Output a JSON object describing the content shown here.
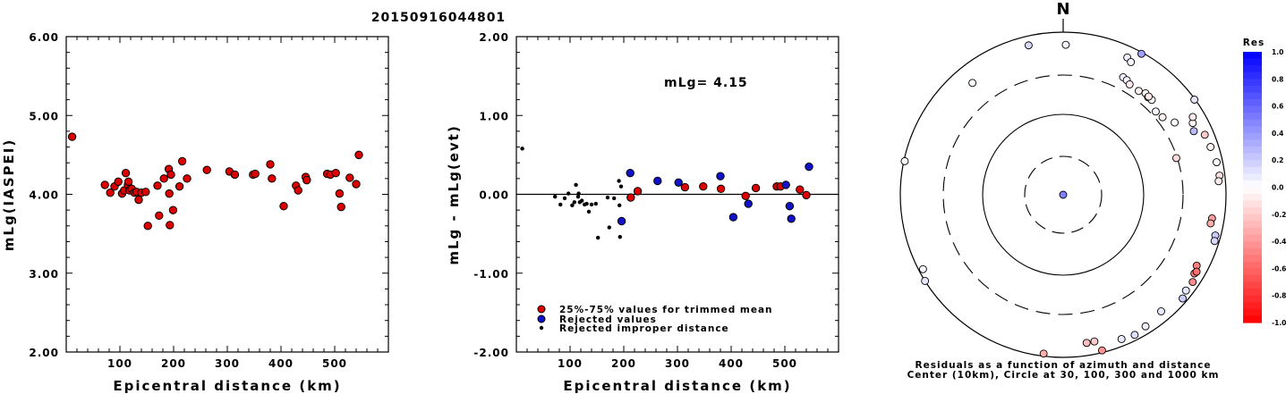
{
  "title": "20150916044801",
  "mlg_annotation": "mLg= 4.15",
  "legend": {
    "trimmed": "25%-75% values for trimmed mean",
    "rejected": "Rejected values",
    "improper": "Rejected improper distance"
  },
  "colors": {
    "trimmed": "#dd0000",
    "rejected": "#1111cc",
    "improper": "#000000"
  },
  "polar": {
    "north_label": "N",
    "caption_line1": "Residuals as a function of azimuth and distance",
    "caption_line2": "Center (10km), Circle at 30, 100, 300 and 1000 km",
    "colorbar_title": "Res",
    "colorbar_ticks": [
      "1.0",
      "0.8",
      "0.6",
      "0.4",
      "0.2",
      "0.0",
      "-0.2",
      "-0.4",
      "-0.6",
      "-0.8",
      "-1.0"
    ]
  },
  "chart_data": [
    {
      "type": "scatter",
      "name": "station_magnitudes",
      "title": "20150916044801",
      "xlabel": "Epicentral distance (km)",
      "ylabel": "mLg(IASPEI)",
      "xlim": [
        0,
        600
      ],
      "ylim": [
        2.0,
        6.0
      ],
      "xticks": [
        "100",
        "200",
        "300",
        "400",
        "500"
      ],
      "yticks": [
        "2.00",
        "3.00",
        "4.00",
        "5.00",
        "6.00"
      ],
      "grid": false,
      "points": [
        [
          11,
          4.73
        ],
        [
          72,
          4.12
        ],
        [
          82,
          4.02
        ],
        [
          90,
          4.1
        ],
        [
          97,
          4.16
        ],
        [
          104,
          4.01
        ],
        [
          108,
          4.05
        ],
        [
          111,
          4.27
        ],
        [
          115,
          4.12
        ],
        [
          116,
          4.16
        ],
        [
          118,
          4.05
        ],
        [
          122,
          4.07
        ],
        [
          127,
          4.02
        ],
        [
          131,
          4.03
        ],
        [
          135,
          3.93
        ],
        [
          140,
          4.02
        ],
        [
          148,
          4.03
        ],
        [
          152,
          3.6
        ],
        [
          170,
          4.11
        ],
        [
          173,
          3.73
        ],
        [
          182,
          4.2
        ],
        [
          191,
          4.32
        ],
        [
          192,
          4.01
        ],
        [
          193,
          3.61
        ],
        [
          195,
          4.25
        ],
        [
          199,
          3.8
        ],
        [
          211,
          4.1
        ],
        [
          216,
          4.42
        ],
        [
          225,
          4.2
        ],
        [
          262,
          4.31
        ],
        [
          304,
          4.29
        ],
        [
          314,
          4.25
        ],
        [
          348,
          4.25
        ],
        [
          352,
          4.26
        ],
        [
          380,
          4.38
        ],
        [
          383,
          4.2
        ],
        [
          405,
          3.85
        ],
        [
          428,
          4.11
        ],
        [
          432,
          4.05
        ],
        [
          446,
          4.22
        ],
        [
          448,
          4.18
        ],
        [
          486,
          4.26
        ],
        [
          492,
          4.25
        ],
        [
          502,
          4.27
        ],
        [
          509,
          4.01
        ],
        [
          512,
          3.84
        ],
        [
          528,
          4.21
        ],
        [
          540,
          4.13
        ],
        [
          545,
          4.5
        ]
      ]
    },
    {
      "type": "scatter",
      "name": "residuals_vs_distance",
      "xlabel": "Epicentral distance (km)",
      "ylabel": "mLg - mLg(evt)",
      "xlim": [
        0,
        600
      ],
      "ylim": [
        -2.0,
        2.0
      ],
      "xticks": [
        "100",
        "200",
        "300",
        "400",
        "500"
      ],
      "yticks": [
        "-2.00",
        "-1.00",
        "0.00",
        "1.00",
        "2.00"
      ],
      "hline": 0,
      "series": [
        {
          "name": "25%-75% values for trimmed mean",
          "points": [
            [
              213,
              -0.04
            ],
            [
              226,
              0.04
            ],
            [
              314,
              0.09
            ],
            [
              348,
              0.1
            ],
            [
              381,
              0.07
            ],
            [
              427,
              -0.02
            ],
            [
              446,
              0.08
            ],
            [
              485,
              0.1
            ],
            [
              492,
              0.1
            ],
            [
              528,
              0.06
            ],
            [
              540,
              -0.01
            ]
          ]
        },
        {
          "name": "Rejected values",
          "points": [
            [
              212,
              0.27
            ],
            [
              196,
              -0.34
            ],
            [
              263,
              0.17
            ],
            [
              302,
              0.15
            ],
            [
              380,
              0.23
            ],
            [
              404,
              -0.29
            ],
            [
              432,
              -0.12
            ],
            [
              502,
              0.12
            ],
            [
              509,
              -0.15
            ],
            [
              512,
              -0.31
            ],
            [
              545,
              0.35
            ]
          ]
        },
        {
          "name": "Rejected improper distance",
          "points": [
            [
              11,
              0.58
            ],
            [
              72,
              -0.03
            ],
            [
              82,
              -0.13
            ],
            [
              90,
              -0.05
            ],
            [
              97,
              0.01
            ],
            [
              104,
              -0.14
            ],
            [
              108,
              -0.1
            ],
            [
              111,
              0.12
            ],
            [
              115,
              -0.03
            ],
            [
              116,
              0.01
            ],
            [
              118,
              -0.1
            ],
            [
              122,
              -0.08
            ],
            [
              127,
              -0.13
            ],
            [
              131,
              -0.12
            ],
            [
              135,
              -0.22
            ],
            [
              140,
              -0.13
            ],
            [
              148,
              -0.12
            ],
            [
              152,
              -0.55
            ],
            [
              170,
              -0.04
            ],
            [
              173,
              -0.42
            ],
            [
              182,
              -0.05
            ],
            [
              191,
              0.17
            ],
            [
              192,
              -0.14
            ],
            [
              193,
              -0.54
            ],
            [
              195,
              0.1
            ],
            [
              199,
              -0.35
            ]
          ]
        }
      ]
    },
    {
      "type": "scatter",
      "name": "azimuth_distance_residuals",
      "coordinate_system": "polar (azimuth degrees clockwise from north, distance km on log scale)",
      "rings_km": [
        10,
        30,
        100,
        300,
        1000
      ],
      "colorbar_range": [
        -1.0,
        1.0
      ],
      "points": [
        [
          29,
          960,
          0.37
        ],
        [
          347,
          770,
          0.15
        ],
        [
          1,
          700,
          0.04
        ],
        [
          25,
          730,
          0.06
        ],
        [
          27,
          680,
          0.03
        ],
        [
          321,
          590,
          -0.02
        ],
        [
          27,
          420,
          0.06
        ],
        [
          29,
          410,
          0.04
        ],
        [
          31,
          385,
          -0.08
        ],
        [
          36,
          380,
          -0.05
        ],
        [
          39,
          405,
          -0.02
        ],
        [
          41,
          390,
          -0.03
        ],
        [
          43,
          395,
          -0.01
        ],
        [
          41,
          400,
          -0.07
        ],
        [
          48,
          340,
          0.03
        ],
        [
          52,
          355,
          -0.06
        ],
        [
          57,
          430,
          0.02
        ],
        [
          61,
          660,
          -0.05
        ],
        [
          67,
          775,
          -0.2
        ],
        [
          78,
          845,
          0.02
        ],
        [
          83,
          860,
          -0.12
        ],
        [
          85,
          825,
          -0.07
        ],
        [
          282,
          975,
          0.01
        ],
        [
          72,
          800,
          -0.05
        ],
        [
          99,
          710,
          -0.38
        ],
        [
          101,
          700,
          -0.32
        ],
        [
          118,
          720,
          -0.5
        ],
        [
          121,
          760,
          -0.5
        ],
        [
          120,
          780,
          -0.55
        ],
        [
          124,
          830,
          -0.45
        ],
        [
          72,
          290,
          -0.15
        ],
        [
          105,
          860,
          0.2
        ],
        [
          107,
          880,
          0.15
        ],
        [
          128,
          820,
          0.1
        ],
        [
          131,
          880,
          0.2
        ],
        [
          158,
          820,
          0.08
        ],
        [
          171,
          700,
          -0.25
        ],
        [
          168,
          700,
          -0.2
        ],
        [
          148,
          810,
          0.05
        ],
        [
          153,
          860,
          0.12
        ],
        [
          140,
          745,
          0.08
        ],
        [
          187,
          930,
          -0.32
        ],
        [
          166,
          940,
          -0.42
        ],
        [
          242,
          890,
          0.03
        ],
        [
          238,
          1000,
          0.1
        ],
        [
          54,
          980,
          0.1
        ],
        [
          205,
          10,
          0.5
        ],
        [
          64,
          610,
          0.27
        ],
        [
          59,
          720,
          -0.09
        ]
      ]
    }
  ]
}
